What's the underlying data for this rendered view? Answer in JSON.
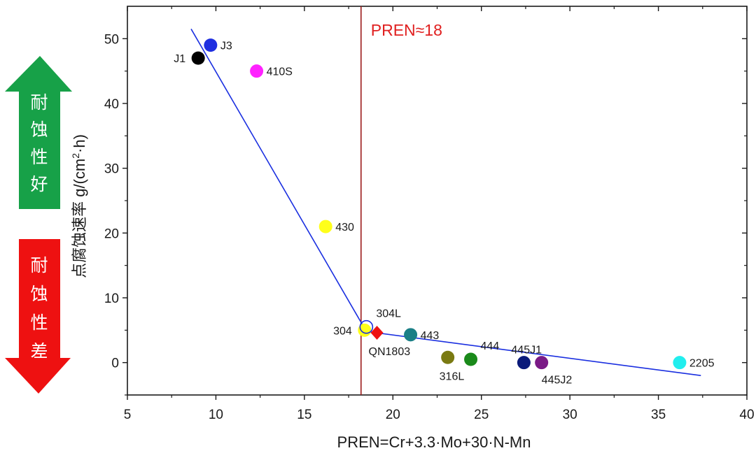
{
  "chart_data": {
    "type": "scatter",
    "xlabel": "PREN=Cr+3.3·Mo+30·N-Mn",
    "ylabel_main": "点腐蚀速率 g/(cm",
    "ylabel_sup": "2",
    "ylabel_tail": "·h)",
    "xlim": [
      5,
      40
    ],
    "ylim": [
      -5,
      55
    ],
    "xticks": [
      5,
      10,
      15,
      20,
      25,
      30,
      35,
      40
    ],
    "yticks": [
      0,
      10,
      20,
      30,
      40,
      50
    ],
    "grid": false,
    "threshold": {
      "x": 18.2,
      "label": "PREN≈18",
      "color": "#e02020",
      "line_color": "#9b1b1b"
    },
    "points": [
      {
        "name": "J1",
        "x": 9.0,
        "y": 47.0,
        "color": "#000000",
        "marker": "circle",
        "label_color": "#1a1a1a",
        "label_pos": "left"
      },
      {
        "name": "J3",
        "x": 9.7,
        "y": 49.0,
        "color": "#1f2fe0",
        "marker": "circle",
        "label_color": "#1a1a1a",
        "label_pos": "right"
      },
      {
        "name": "410S",
        "x": 12.3,
        "y": 45.0,
        "color": "#ff22ff",
        "marker": "circle",
        "label_color": "#1a1a1a",
        "label_pos": "right"
      },
      {
        "name": "430",
        "x": 16.2,
        "y": 21.0,
        "color": "#ffff1a",
        "marker": "circle",
        "label_color": "#1a1a1a",
        "label_pos": "right"
      },
      {
        "name": "304",
        "x": 18.4,
        "y": 5.0,
        "color": "#ffff1a",
        "marker": "circle",
        "label_color": "#1a1a1a",
        "label_pos": "left"
      },
      {
        "name": "304L",
        "x": 18.5,
        "y": 5.5,
        "color": "#ffffff",
        "marker": "ring",
        "label_color": "#1a1a1a",
        "label_pos": "above-right"
      },
      {
        "name": "QN1803",
        "x": 19.1,
        "y": 4.6,
        "color": "#ee1111",
        "marker": "diamond",
        "label_color": "#e02020",
        "label_pos": "below"
      },
      {
        "name": "443",
        "x": 21.0,
        "y": 4.3,
        "color": "#1a7f86",
        "marker": "circle",
        "label_color": "#1a1a1a",
        "label_pos": "right"
      },
      {
        "name": "316L",
        "x": 23.1,
        "y": 0.8,
        "color": "#7a7a12",
        "marker": "circle",
        "label_color": "#1a1a1a",
        "label_pos": "below"
      },
      {
        "name": "444",
        "x": 24.4,
        "y": 0.5,
        "color": "#1a8a1a",
        "marker": "circle",
        "label_color": "#1a1a1a",
        "label_pos": "above-right"
      },
      {
        "name": "445J1",
        "x": 27.4,
        "y": 0.0,
        "color": "#0a1a7a",
        "marker": "circle",
        "label_color": "#1a1a1a",
        "label_pos": "above"
      },
      {
        "name": "445J2",
        "x": 28.4,
        "y": 0.0,
        "color": "#7a1a86",
        "marker": "circle",
        "label_color": "#1a1a1a",
        "label_pos": "below-right"
      },
      {
        "name": "2205",
        "x": 36.2,
        "y": 0.0,
        "color": "#22eeee",
        "marker": "circle",
        "label_color": "#1a1a1a",
        "label_pos": "right"
      }
    ],
    "fit_line": {
      "color": "#1a2fe0",
      "points": [
        [
          8.6,
          51.5
        ],
        [
          18.5,
          4.8
        ],
        [
          37.4,
          -2.0
        ]
      ]
    }
  },
  "side_labels": {
    "good": {
      "text": [
        "耐",
        "蚀",
        "性",
        "好"
      ],
      "arrow_color": "#17a148",
      "text_color": "#ffffff"
    },
    "poor": {
      "text": [
        "耐",
        "蚀",
        "性",
        "差"
      ],
      "arrow_color": "#ee1111",
      "text_color": "#ffffff"
    }
  }
}
